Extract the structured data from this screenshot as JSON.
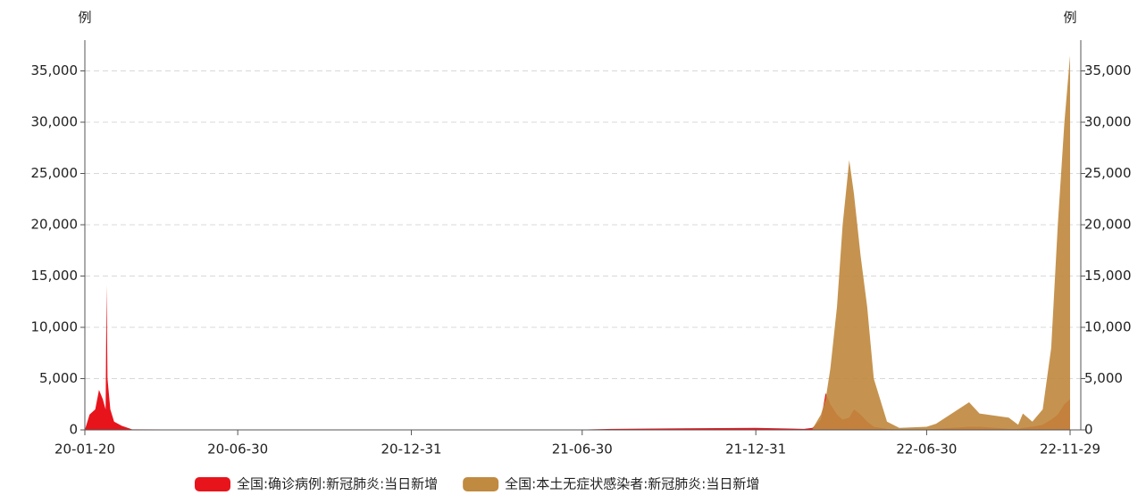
{
  "chart_data": {
    "type": "area",
    "y_label": "例",
    "y2_label": "例",
    "x": [
      "2020-01-20",
      "2020-01-25",
      "2020-01-31",
      "2020-02-04",
      "2020-02-08",
      "2020-02-11",
      "2020-02-12",
      "2020-02-13",
      "2020-02-16",
      "2020-02-20",
      "2020-02-28",
      "2020-03-10",
      "2020-06-30",
      "2020-12-31",
      "2021-06-30",
      "2021-08-01",
      "2021-12-31",
      "2022-02-20",
      "2022-03-01",
      "2022-03-10",
      "2022-03-15",
      "2022-03-20",
      "2022-03-27",
      "2022-04-02",
      "2022-04-09",
      "2022-04-14",
      "2022-04-21",
      "2022-04-28",
      "2022-05-05",
      "2022-05-19",
      "2022-06-01",
      "2022-06-30",
      "2022-07-10",
      "2022-08-14",
      "2022-08-25",
      "2022-09-25",
      "2022-10-05",
      "2022-10-10",
      "2022-10-20",
      "2022-10-31",
      "2022-11-09",
      "2022-11-16",
      "2022-11-23",
      "2022-11-29"
    ],
    "series": [
      {
        "name": "全国:确诊病例:新冠肺炎:当日新增",
        "color": "#e8141c",
        "values": [
          0,
          1500,
          2000,
          3900,
          3000,
          2000,
          14100,
          5000,
          2000,
          800,
          400,
          50,
          20,
          40,
          30,
          100,
          200,
          100,
          200,
          1000,
          3600,
          2500,
          1500,
          1000,
          1200,
          2000,
          1500,
          800,
          300,
          100,
          50,
          50,
          100,
          300,
          300,
          100,
          100,
          200,
          300,
          500,
          1000,
          1500,
          2500,
          3000
        ]
      },
      {
        "name": "全国:本土无症状感染者:新冠肺炎:当日新增",
        "color": "#c08a40",
        "axis": "y2",
        "values": [
          null,
          null,
          null,
          null,
          null,
          null,
          null,
          null,
          null,
          null,
          null,
          null,
          null,
          null,
          null,
          null,
          null,
          null,
          100,
          1500,
          3000,
          6000,
          12000,
          20000,
          26300,
          23000,
          17000,
          12000,
          5000,
          800,
          200,
          300,
          600,
          2700,
          1600,
          1200,
          500,
          1600,
          800,
          2000,
          8000,
          20000,
          30000,
          36500
        ]
      }
    ],
    "xlim": [
      "2020-01-20",
      "2022-11-29"
    ],
    "xticks": [
      {
        "value": "2020-01-20",
        "label": "20-01-20"
      },
      {
        "value": "2020-06-30",
        "label": "20-06-30"
      },
      {
        "value": "2020-12-31",
        "label": "20-12-31"
      },
      {
        "value": "2021-06-30",
        "label": "21-06-30"
      },
      {
        "value": "2021-12-31",
        "label": "21-12-31"
      },
      {
        "value": "2022-06-30",
        "label": "22-06-30"
      },
      {
        "value": "2022-11-29",
        "label": "22-11-29"
      }
    ],
    "ylim": [
      0,
      38000
    ],
    "yticks": [
      0,
      {
        "value": 5000,
        "label": "5,000"
      },
      {
        "value": 10000,
        "label": "10,000"
      },
      {
        "value": 15000,
        "label": "15,000"
      },
      {
        "value": 20000,
        "label": "20,000"
      },
      {
        "value": 25000,
        "label": "25,000"
      },
      {
        "value": 30000,
        "label": "30,000"
      },
      {
        "value": 35000,
        "label": "35,000"
      }
    ],
    "y2lim": [
      0,
      38000
    ],
    "y2ticks": [
      0,
      {
        "value": 5000,
        "label": "5,000"
      },
      {
        "value": 10000,
        "label": "10,000"
      },
      {
        "value": 15000,
        "label": "15,000"
      },
      {
        "value": 20000,
        "label": "20,000"
      },
      {
        "value": 25000,
        "label": "25,000"
      },
      {
        "value": 30000,
        "label": "30,000"
      },
      {
        "value": 35000,
        "label": "35,000"
      }
    ],
    "grid": true,
    "legend": "bottom"
  }
}
